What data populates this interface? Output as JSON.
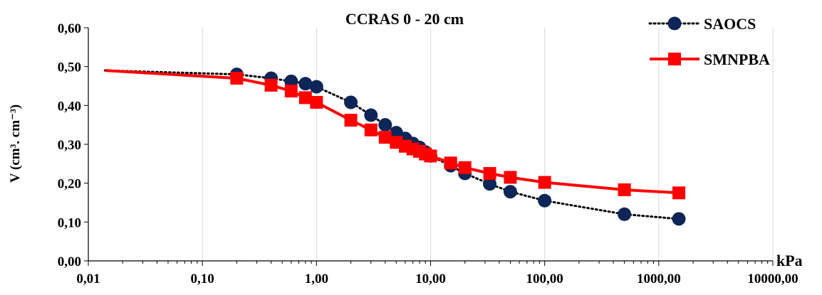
{
  "chart_data": {
    "type": "line",
    "title": "CCRAS 0 - 20 cm",
    "xlabel": "kPa",
    "ylabel": "V (cm³. cm⁻³)",
    "x_scale": "log",
    "xlim": [
      0.01,
      10000
    ],
    "ylim": [
      0,
      0.6
    ],
    "x_ticks": [
      "0,01",
      "0,10",
      "1,00",
      "10,00",
      "100,00",
      "1000,00",
      "10000,00"
    ],
    "y_ticks": [
      "0,00",
      "0,10",
      "0,20",
      "0,30",
      "0,40",
      "0,50",
      "0,60"
    ],
    "grid": "vertical",
    "legend_position": "top-right",
    "series": [
      {
        "name": "SAOCS",
        "color": "#0d2557",
        "line_style": "dotted",
        "line_color": "#000000",
        "marker": "circle",
        "x": [
          0.014,
          0.2,
          0.4,
          0.6,
          0.8,
          1,
          2,
          3,
          4,
          5,
          6,
          7,
          8,
          9,
          10,
          15,
          20,
          33,
          50,
          100,
          500,
          1500
        ],
        "y": [
          0.49,
          0.48,
          0.47,
          0.462,
          0.456,
          0.448,
          0.408,
          0.375,
          0.35,
          0.33,
          0.315,
          0.302,
          0.292,
          0.28,
          0.27,
          0.245,
          0.225,
          0.198,
          0.178,
          0.155,
          0.12,
          0.108
        ]
      },
      {
        "name": "SMNPBA",
        "color": "#ff0000",
        "line_style": "solid",
        "line_color": "#ff0000",
        "marker": "square",
        "x": [
          0.014,
          0.2,
          0.4,
          0.6,
          0.8,
          1,
          2,
          3,
          4,
          5,
          6,
          7,
          8,
          9,
          10,
          15,
          20,
          33,
          50,
          100,
          500,
          1500
        ],
        "y": [
          0.49,
          0.47,
          0.452,
          0.437,
          0.42,
          0.408,
          0.362,
          0.337,
          0.318,
          0.305,
          0.295,
          0.288,
          0.282,
          0.275,
          0.27,
          0.252,
          0.24,
          0.225,
          0.215,
          0.202,
          0.183,
          0.175
        ]
      }
    ]
  }
}
